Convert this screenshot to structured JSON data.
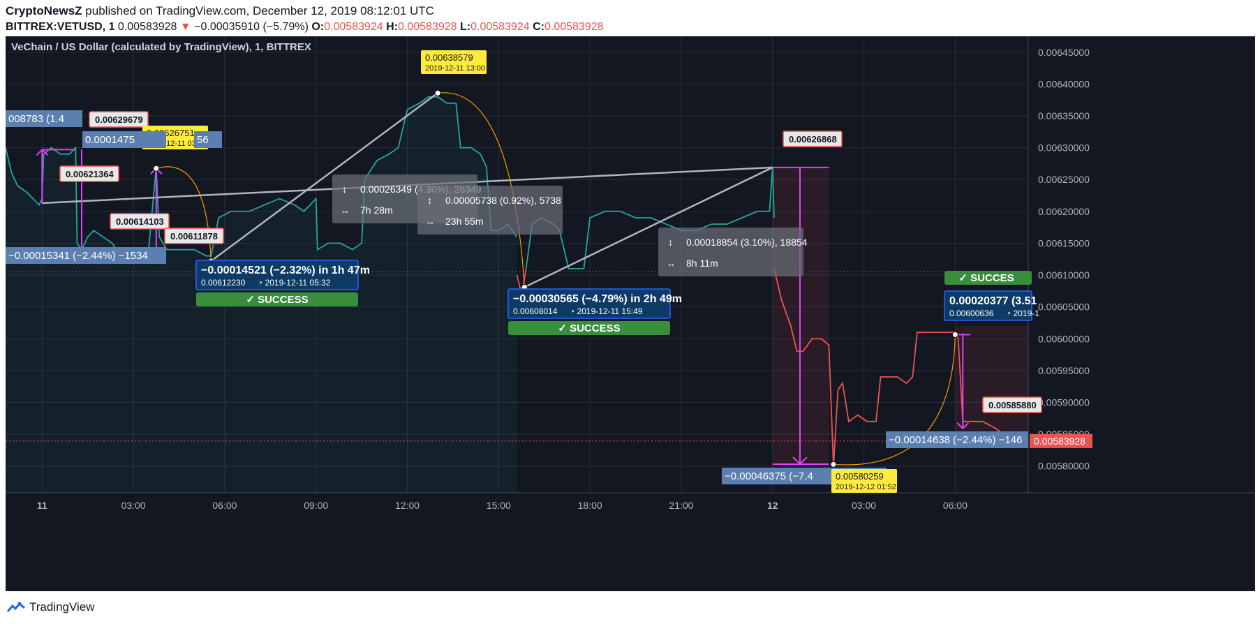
{
  "header": {
    "publisher": "CryptoNewsZ",
    "published_text": " published on TradingView.com, December 12, 2019 08:12:01 UTC",
    "symbol": "BITTREX:VETUSD, 1",
    "last": "0.00583928",
    "change_arrow": "▼",
    "change": "−0.00035910 (−5.79%)",
    "o_label": "O:",
    "o_value": "0.00583924",
    "h_label": "H:",
    "h_value": "0.00583928",
    "l_label": "L:",
    "l_value": "0.00583924",
    "c_label": "C:",
    "c_value": "0.00583928"
  },
  "chart_title": "VeChain / US Dollar (calculated by TradingView), 1, BITTREX",
  "footer": {
    "brand": "TradingView",
    "logo_icon": "tradingview-logo-icon"
  },
  "colors": {
    "background": "#131722",
    "up": "#26a69a",
    "down": "#ef5350",
    "grid": "#2a2e39",
    "magenta": "#e040fb",
    "orange": "#ff9800",
    "gray_line": "#b2b5be",
    "success": "#388e3c",
    "blue_box": "#0d3b66",
    "steel_label": "#5b7fb0",
    "yellow_label": "#ffeb3b"
  },
  "chart_data": {
    "type": "line",
    "x_ticks": [
      "11",
      "03:00",
      "06:00",
      "09:00",
      "12:00",
      "15:00",
      "18:00",
      "21:00",
      "12",
      "03:00",
      "06:00"
    ],
    "y_ticks": [
      "0.00645000",
      "0.00640000",
      "0.00635000",
      "0.00630000",
      "0.00625000",
      "0.00620000",
      "0.00615000",
      "0.00610000",
      "0.00605000",
      "0.00600000",
      "0.00595000",
      "0.00590000",
      "0.00585000",
      "0.00580000"
    ],
    "ylim": [
      0.005758,
      0.006475
    ],
    "xlim_hours": [
      -1.2,
      32.4
    ],
    "last_price": "0.00583928",
    "series": [
      {
        "color": "#26a69a",
        "points": [
          [
            -1.2,
            0.0063
          ],
          [
            -1.0,
            0.00626
          ],
          [
            -0.8,
            0.00624
          ],
          [
            -0.5,
            0.00623
          ],
          [
            -0.1,
            0.00621
          ],
          [
            0.0,
            0.00622
          ],
          [
            0.05,
            0.00629
          ],
          [
            0.3,
            0.0063
          ],
          [
            0.6,
            0.00629
          ],
          [
            0.9,
            0.00629
          ],
          [
            1.1,
            0.0063
          ],
          [
            1.15,
            0.00615
          ],
          [
            1.3,
            0.00614
          ],
          [
            1.5,
            0.00616
          ],
          [
            1.7,
            0.00617
          ],
          [
            2.0,
            0.00616
          ],
          [
            2.3,
            0.00615
          ],
          [
            2.6,
            0.00613
          ],
          [
            2.9,
            0.00614
          ],
          [
            3.25,
            0.00613
          ],
          [
            3.5,
            0.00614
          ],
          [
            3.75,
            0.00627
          ],
          [
            3.85,
            0.00616
          ],
          [
            4.1,
            0.00614
          ],
          [
            4.5,
            0.00614
          ],
          [
            5.0,
            0.00614
          ],
          [
            5.4,
            0.00613
          ],
          [
            5.55,
            0.00613
          ],
          [
            5.8,
            0.00619
          ],
          [
            6.2,
            0.0062
          ],
          [
            6.8,
            0.0062
          ],
          [
            7.3,
            0.00621
          ],
          [
            7.8,
            0.00622
          ],
          [
            8.3,
            0.00621
          ],
          [
            8.6,
            0.0062
          ],
          [
            9.0,
            0.00622
          ],
          [
            9.05,
            0.00614
          ],
          [
            9.4,
            0.00615
          ],
          [
            9.8,
            0.00615
          ],
          [
            10.2,
            0.00614
          ],
          [
            10.5,
            0.00615
          ],
          [
            10.6,
            0.00625
          ],
          [
            11.0,
            0.00628
          ],
          [
            11.4,
            0.00629
          ],
          [
            11.7,
            0.0063
          ],
          [
            12.0,
            0.00636
          ],
          [
            12.4,
            0.00637
          ],
          [
            12.7,
            0.00638
          ],
          [
            13.0,
            0.00638
          ],
          [
            13.3,
            0.00637
          ],
          [
            13.6,
            0.00637
          ],
          [
            13.75,
            0.0063
          ],
          [
            14.1,
            0.0063
          ],
          [
            14.4,
            0.00629
          ],
          [
            14.6,
            0.00627
          ],
          [
            14.75,
            0.00617
          ],
          [
            15.0,
            0.00617
          ],
          [
            15.3,
            0.00618
          ],
          [
            15.6,
            0.00616
          ]
        ]
      },
      {
        "color": "#ef5350",
        "points": [
          [
            15.6,
            0.0061
          ],
          [
            15.7,
            0.00608
          ],
          [
            15.8,
            0.00608
          ],
          [
            15.9,
            0.00611
          ]
        ]
      },
      {
        "color": "#26a69a",
        "points": [
          [
            15.9,
            0.00611
          ],
          [
            16.1,
            0.00618
          ],
          [
            16.4,
            0.00619
          ],
          [
            16.8,
            0.00618
          ],
          [
            17.0,
            0.00617
          ],
          [
            17.3,
            0.00611
          ],
          [
            17.6,
            0.00611
          ],
          [
            17.8,
            0.00611
          ],
          [
            18.0,
            0.00619
          ],
          [
            18.5,
            0.0062
          ],
          [
            19.0,
            0.0062
          ],
          [
            19.5,
            0.00619
          ],
          [
            20.0,
            0.00619
          ],
          [
            20.5,
            0.00618
          ],
          [
            21.0,
            0.00617
          ],
          [
            21.5,
            0.00617
          ],
          [
            22.0,
            0.00618
          ],
          [
            22.5,
            0.00618
          ],
          [
            23.0,
            0.00619
          ],
          [
            23.5,
            0.0062
          ],
          [
            23.9,
            0.0062
          ],
          [
            24.0,
            0.00627
          ],
          [
            24.05,
            0.00619
          ]
        ]
      },
      {
        "color": "#ef5350",
        "points": [
          [
            24.05,
            0.00611
          ],
          [
            24.3,
            0.00606
          ],
          [
            24.6,
            0.00602
          ],
          [
            24.8,
            0.00598
          ],
          [
            25.0,
            0.00598
          ],
          [
            25.3,
            0.006
          ],
          [
            25.6,
            0.006
          ],
          [
            25.85,
            0.00599
          ],
          [
            26.0,
            0.0058
          ],
          [
            26.15,
            0.00592
          ],
          [
            26.3,
            0.00593
          ],
          [
            26.5,
            0.00587
          ],
          [
            26.8,
            0.00588
          ],
          [
            27.1,
            0.00587
          ],
          [
            27.4,
            0.00587
          ],
          [
            27.55,
            0.00594
          ],
          [
            27.8,
            0.00594
          ],
          [
            28.1,
            0.00594
          ],
          [
            28.4,
            0.00593
          ],
          [
            28.6,
            0.00594
          ],
          [
            28.75,
            0.00601
          ],
          [
            29.2,
            0.00601
          ],
          [
            29.6,
            0.00601
          ],
          [
            30.0,
            0.00601
          ],
          [
            30.1,
            0.006
          ],
          [
            30.25,
            0.00587
          ],
          [
            30.5,
            0.00587
          ],
          [
            30.9,
            0.00587
          ],
          [
            31.3,
            0.00586
          ],
          [
            31.6,
            0.00585
          ],
          [
            32.0,
            0.00584
          ],
          [
            32.4,
            0.00584
          ]
        ]
      }
    ],
    "annotations": {
      "price_tags": [
        {
          "text": "0.00629679"
        },
        {
          "text": "0.00621364"
        },
        {
          "text": "0.00614103"
        },
        {
          "text": "0.00611878"
        },
        {
          "text": "0.00626868"
        },
        {
          "text": "0.00585880"
        }
      ],
      "yellow_labels": [
        {
          "price": "0.00626751",
          "date": "2019-12-11 03:45"
        },
        {
          "price": "0.00638579",
          "date": "2019-12-11 13:00"
        },
        {
          "price": "0.00580259",
          "date": "2019-12-12 01:52"
        }
      ],
      "range_boxes": [
        {
          "delta": "0.00026349 (4.30%), 26349",
          "duration": "7h 28m"
        },
        {
          "delta": "0.00005738 (0.92%), 5738",
          "duration": "23h 55m"
        },
        {
          "delta": "0.00018854 (3.10%), 18854",
          "duration": "8h 11m"
        }
      ],
      "trade_boxes": [
        {
          "title": "−0.00014521 (−2.32%) in 1h 47m",
          "detail": "0.00612230",
          "date": "2019-12-11  05:32",
          "badge": "✓ SUCCESS"
        },
        {
          "title": "−0.00030565 (−4.79%) in 2h 49m",
          "detail": "0.00608014",
          "date": "2019-12-11  15:49",
          "badge": "✓ SUCCESS"
        },
        {
          "title": "0.00020377 (3.51",
          "detail": "0.00600636",
          "date": "2019-1",
          "badge": "✓ SUCCES"
        }
      ],
      "steel_labels": [
        {
          "text": "008783 (1.4"
        },
        {
          "text": "0.0001475"
        },
        {
          "text": "56"
        },
        {
          "text": "−0.00015341 (−2.44%) −1534"
        },
        {
          "text": "−0.00046375 (−7.4"
        },
        {
          "text": "−0.00014638 (−2.44%) −146"
        }
      ]
    }
  }
}
